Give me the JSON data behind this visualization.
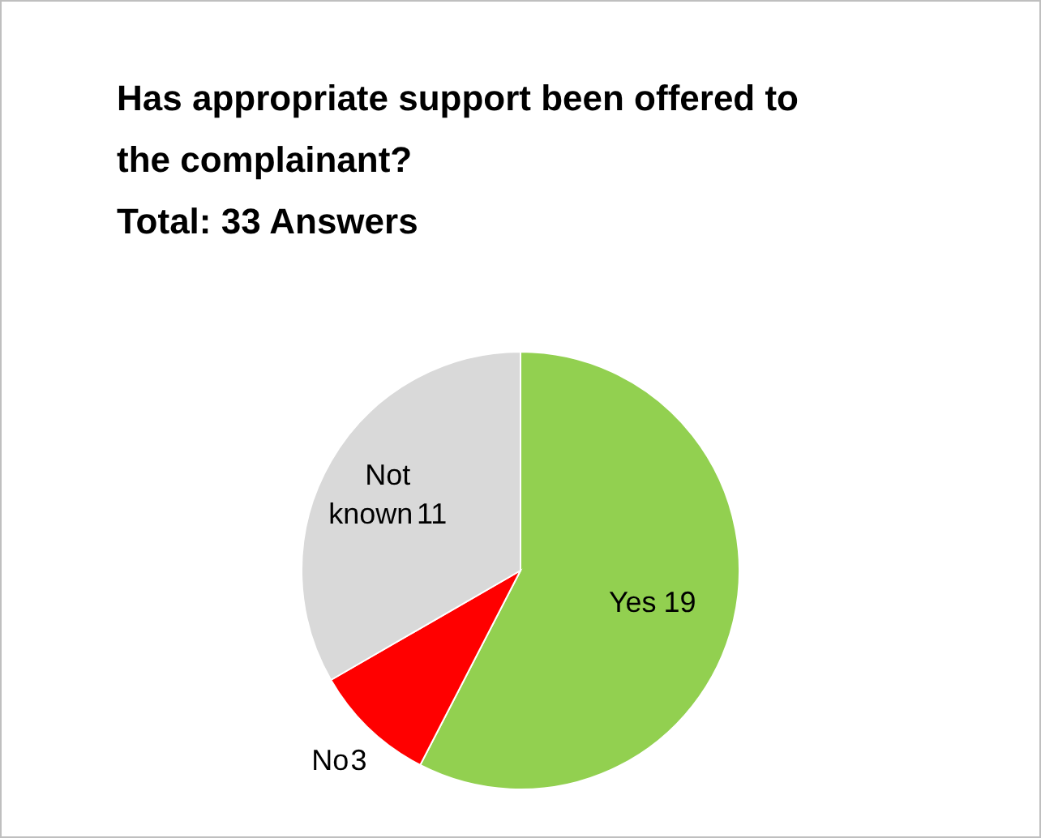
{
  "chart_data": {
    "type": "pie",
    "title": "Has appropriate support been offered to the complainant?",
    "subtitle": "Total: 33 Answers",
    "categories": [
      "Yes",
      "No",
      "Not known"
    ],
    "values": [
      19,
      3,
      11
    ],
    "colors": [
      "#92d050",
      "#ff0000",
      "#d9d9d9"
    ],
    "data_labels": true
  }
}
